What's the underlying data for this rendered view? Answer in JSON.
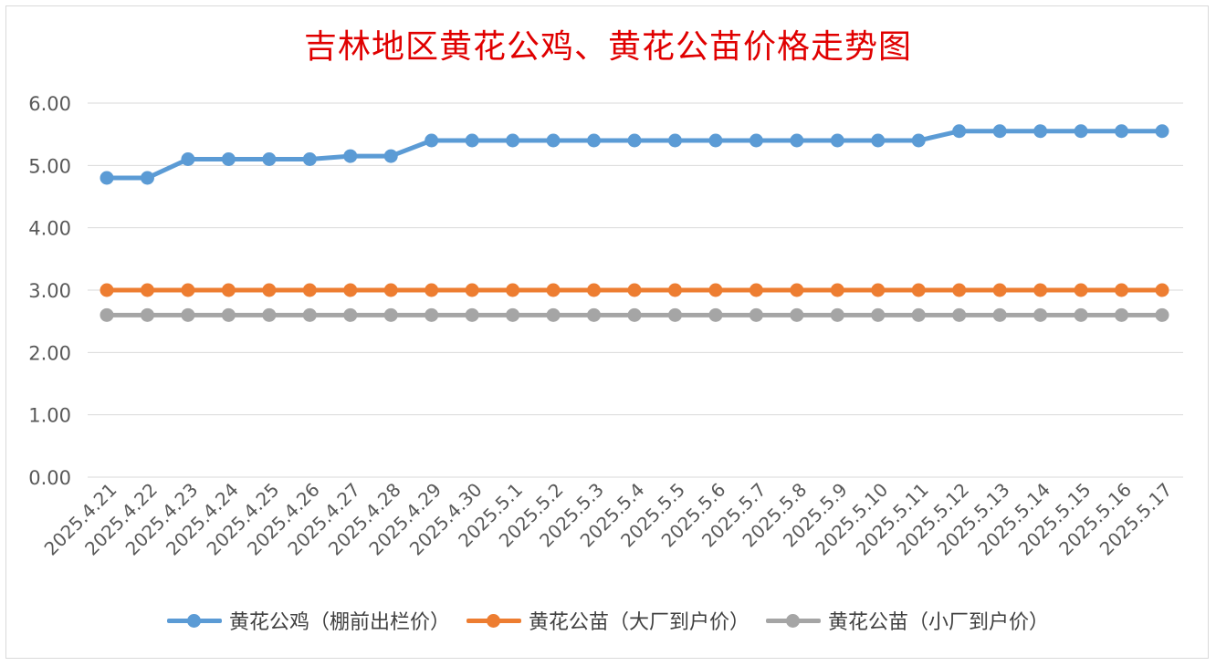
{
  "chart_data": {
    "type": "line",
    "title": "吉林地区黄花公鸡、黄花公苗价格走势图",
    "xlabel": "",
    "ylabel": "",
    "ylim": [
      0,
      6
    ],
    "yticks": [
      "0.00",
      "1.00",
      "2.00",
      "3.00",
      "4.00",
      "5.00",
      "6.00"
    ],
    "grid": true,
    "legend_position": "bottom",
    "categories": [
      "2025.4.21",
      "2025.4.22",
      "2025.4.23",
      "2025.4.24",
      "2025.4.25",
      "2025.4.26",
      "2025.4.27",
      "2025.4.28",
      "2025.4.29",
      "2025.4.30",
      "2025.5.1",
      "2025.5.2",
      "2025.5.3",
      "2025.5.4",
      "2025.5.5",
      "2025.5.6",
      "2025.5.7",
      "2025.5.8",
      "2025.5.9",
      "2025.5.10",
      "2025.5.11",
      "2025.5.12",
      "2025.5.13",
      "2025.5.14",
      "2025.5.15",
      "2025.5.16",
      "2025.5.17"
    ],
    "series": [
      {
        "name": "黄花公鸡（棚前出栏价）",
        "color": "#5b9bd5",
        "values": [
          4.8,
          4.8,
          5.1,
          5.1,
          5.1,
          5.1,
          5.15,
          5.15,
          5.4,
          5.4,
          5.4,
          5.4,
          5.4,
          5.4,
          5.4,
          5.4,
          5.4,
          5.4,
          5.4,
          5.4,
          5.4,
          5.55,
          5.55,
          5.55,
          5.55,
          5.55,
          5.55
        ]
      },
      {
        "name": "黄花公苗（大厂到户价）",
        "color": "#ed7d31",
        "values": [
          3,
          3,
          3,
          3,
          3,
          3,
          3,
          3,
          3,
          3,
          3,
          3,
          3,
          3,
          3,
          3,
          3,
          3,
          3,
          3,
          3,
          3,
          3,
          3,
          3,
          3,
          3
        ]
      },
      {
        "name": "黄花公苗（小厂到户价）",
        "color": "#a5a5a5",
        "values": [
          2.6,
          2.6,
          2.6,
          2.6,
          2.6,
          2.6,
          2.6,
          2.6,
          2.6,
          2.6,
          2.6,
          2.6,
          2.6,
          2.6,
          2.6,
          2.6,
          2.6,
          2.6,
          2.6,
          2.6,
          2.6,
          2.6,
          2.6,
          2.6,
          2.6,
          2.6,
          2.6
        ]
      }
    ]
  }
}
